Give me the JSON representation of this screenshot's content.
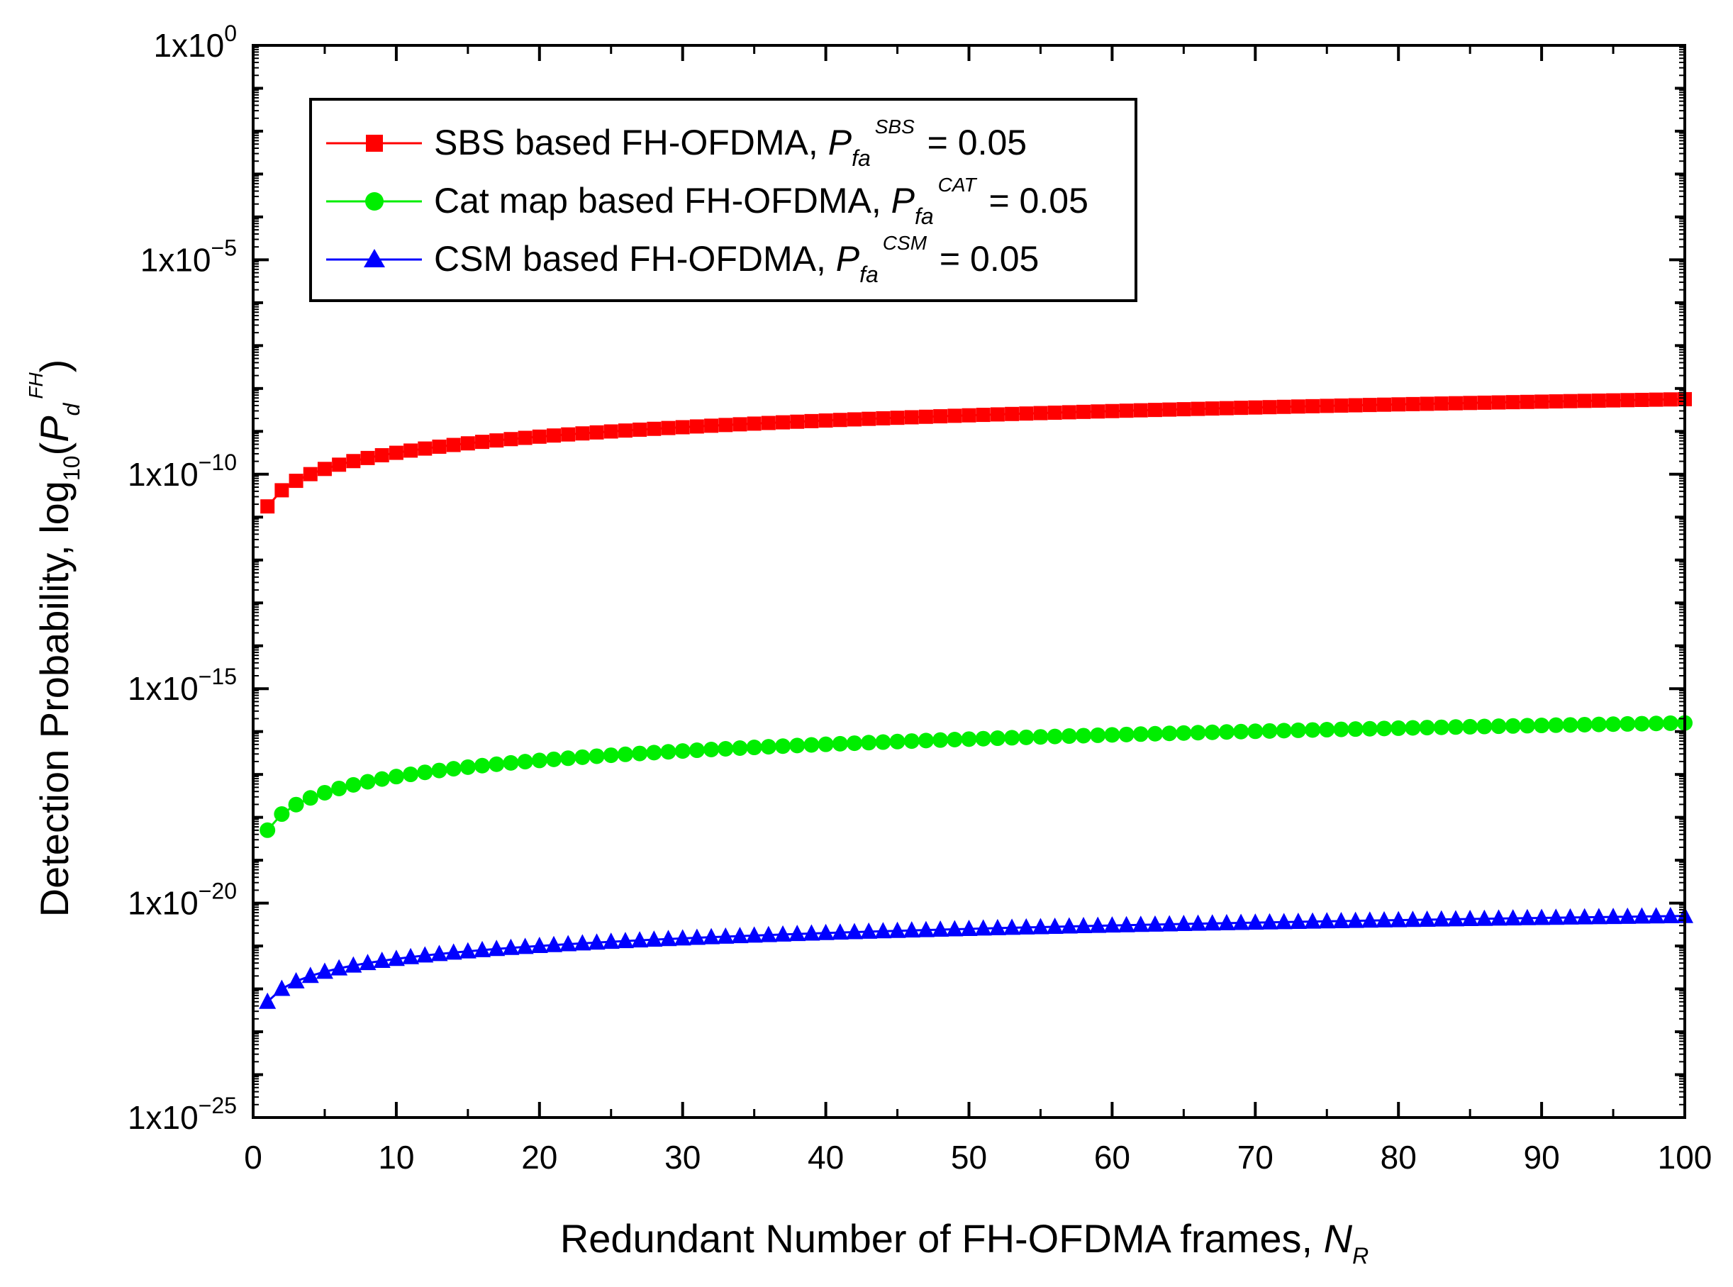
{
  "chart_data": {
    "type": "scatter",
    "xlabel": "Redundant Number of FH-OFDMA frames, ",
    "xlabel_var": "N",
    "xlabel_sub": "R",
    "ylabel": "Detection Probability, log",
    "ylabel_sub": "10",
    "ylabel_paren_open": "(",
    "ylabel_var": "P",
    "ylabel_var_sub": "d",
    "ylabel_var_sup": "FH",
    "ylabel_paren_close": ")",
    "xlim": [
      0,
      100
    ],
    "ylim_log10": [
      -25,
      0
    ],
    "x_ticks": [
      0,
      10,
      20,
      30,
      40,
      50,
      60,
      70,
      80,
      90,
      100
    ],
    "x_tick_labels": [
      "0",
      "10",
      "20",
      "30",
      "40",
      "50",
      "60",
      "70",
      "80",
      "90",
      "100"
    ],
    "y_ticks_log10": [
      0,
      -5,
      -10,
      -15,
      -20,
      -25
    ],
    "y_tick_base": "1x10",
    "y_tick_exponents": [
      "0",
      "−5",
      "−10",
      "−15",
      "−20",
      "−25"
    ],
    "legend_position": "top-left",
    "series": [
      {
        "name": "SBS based FH-OFDMA, ",
        "var": "P",
        "var_sub": "fa",
        "var_sup": "SBS",
        "suffix": " = 0.05",
        "color": "#ff0000",
        "marker": "square",
        "x_range": [
          1,
          100
        ],
        "log10_start": -10.75,
        "log10_end": -8.25,
        "y_log10_at": {
          "1": -10.75,
          "10": -9.7,
          "20": -9.3,
          "50": -8.8,
          "100": -8.25
        }
      },
      {
        "name": "Cat map based FH-OFDMA, ",
        "var": "P",
        "var_sub": "fa",
        "var_sup": "CAT",
        "suffix": " = 0.05",
        "color": "#00ee00",
        "marker": "circle",
        "x_range": [
          1,
          100
        ],
        "log10_start": -18.3,
        "log10_end": -15.8,
        "y_log10_at": {
          "1": -18.3,
          "10": -17.25,
          "20": -16.85,
          "50": -16.35,
          "100": -15.8
        }
      },
      {
        "name": "CSM based FH-OFDMA, ",
        "var": "P",
        "var_sub": "fa",
        "var_sup": "CSM",
        "suffix": " = 0.05",
        "color": "#0000ff",
        "marker": "triangle",
        "x_range": [
          1,
          100
        ],
        "log10_start": -22.3,
        "log10_end": -20.3,
        "y_log10_at": {
          "1": -22.3,
          "10": -21.35,
          "20": -21.05,
          "50": -20.7,
          "100": -20.3
        }
      }
    ]
  }
}
